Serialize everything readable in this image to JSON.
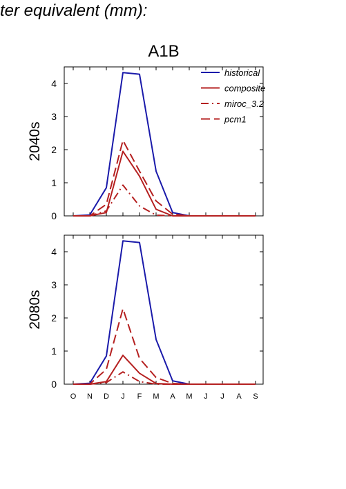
{
  "page_title": "ter equivalent (mm):",
  "chart_data": {
    "type": "line",
    "title": "A1B",
    "categories": [
      "O",
      "N",
      "D",
      "J",
      "F",
      "M",
      "A",
      "M",
      "J",
      "J",
      "A",
      "S"
    ],
    "ylim": [
      0,
      4.5
    ],
    "yticks": [
      0,
      1,
      2,
      3,
      4
    ],
    "grid": false,
    "legend_position": "top-right",
    "series_styles": [
      {
        "name": "historical",
        "color": "#1a1aaa",
        "dash": "solid"
      },
      {
        "name": "composite",
        "color": "#b52020",
        "dash": "solid"
      },
      {
        "name": "miroc_3.2",
        "color": "#b52020",
        "dash": "dashdot"
      },
      {
        "name": "pcm1",
        "color": "#b52020",
        "dash": "dashed"
      }
    ],
    "panels": [
      {
        "label": "2040s",
        "series": [
          {
            "name": "historical",
            "values": [
              0,
              0.03,
              0.85,
              4.33,
              4.28,
              1.35,
              0.1,
              0,
              0,
              0,
              0,
              0
            ]
          },
          {
            "name": "composite",
            "values": [
              0,
              0,
              0.1,
              1.95,
              1.2,
              0.2,
              0,
              0,
              0,
              0,
              0,
              0
            ]
          },
          {
            "name": "miroc_3.2",
            "values": [
              0,
              0,
              0.15,
              0.93,
              0.3,
              0.02,
              0,
              0,
              0,
              0,
              0,
              0
            ]
          },
          {
            "name": "pcm1",
            "values": [
              0,
              0,
              0.35,
              2.28,
              1.35,
              0.45,
              0.05,
              0,
              0,
              0,
              0,
              0
            ]
          }
        ]
      },
      {
        "label": "2080s",
        "series": [
          {
            "name": "historical",
            "values": [
              0,
              0.03,
              0.85,
              4.33,
              4.28,
              1.35,
              0.1,
              0,
              0,
              0,
              0,
              0
            ]
          },
          {
            "name": "composite",
            "values": [
              0,
              0,
              0.08,
              0.87,
              0.33,
              0.02,
              0,
              0,
              0,
              0,
              0,
              0
            ]
          },
          {
            "name": "miroc_3.2",
            "values": [
              0,
              0,
              0.05,
              0.37,
              0.08,
              0,
              0,
              0,
              0,
              0,
              0,
              0
            ]
          },
          {
            "name": "pcm1",
            "values": [
              0,
              0,
              0.45,
              2.28,
              0.78,
              0.2,
              0.02,
              0,
              0,
              0,
              0,
              0
            ]
          }
        ]
      }
    ]
  }
}
